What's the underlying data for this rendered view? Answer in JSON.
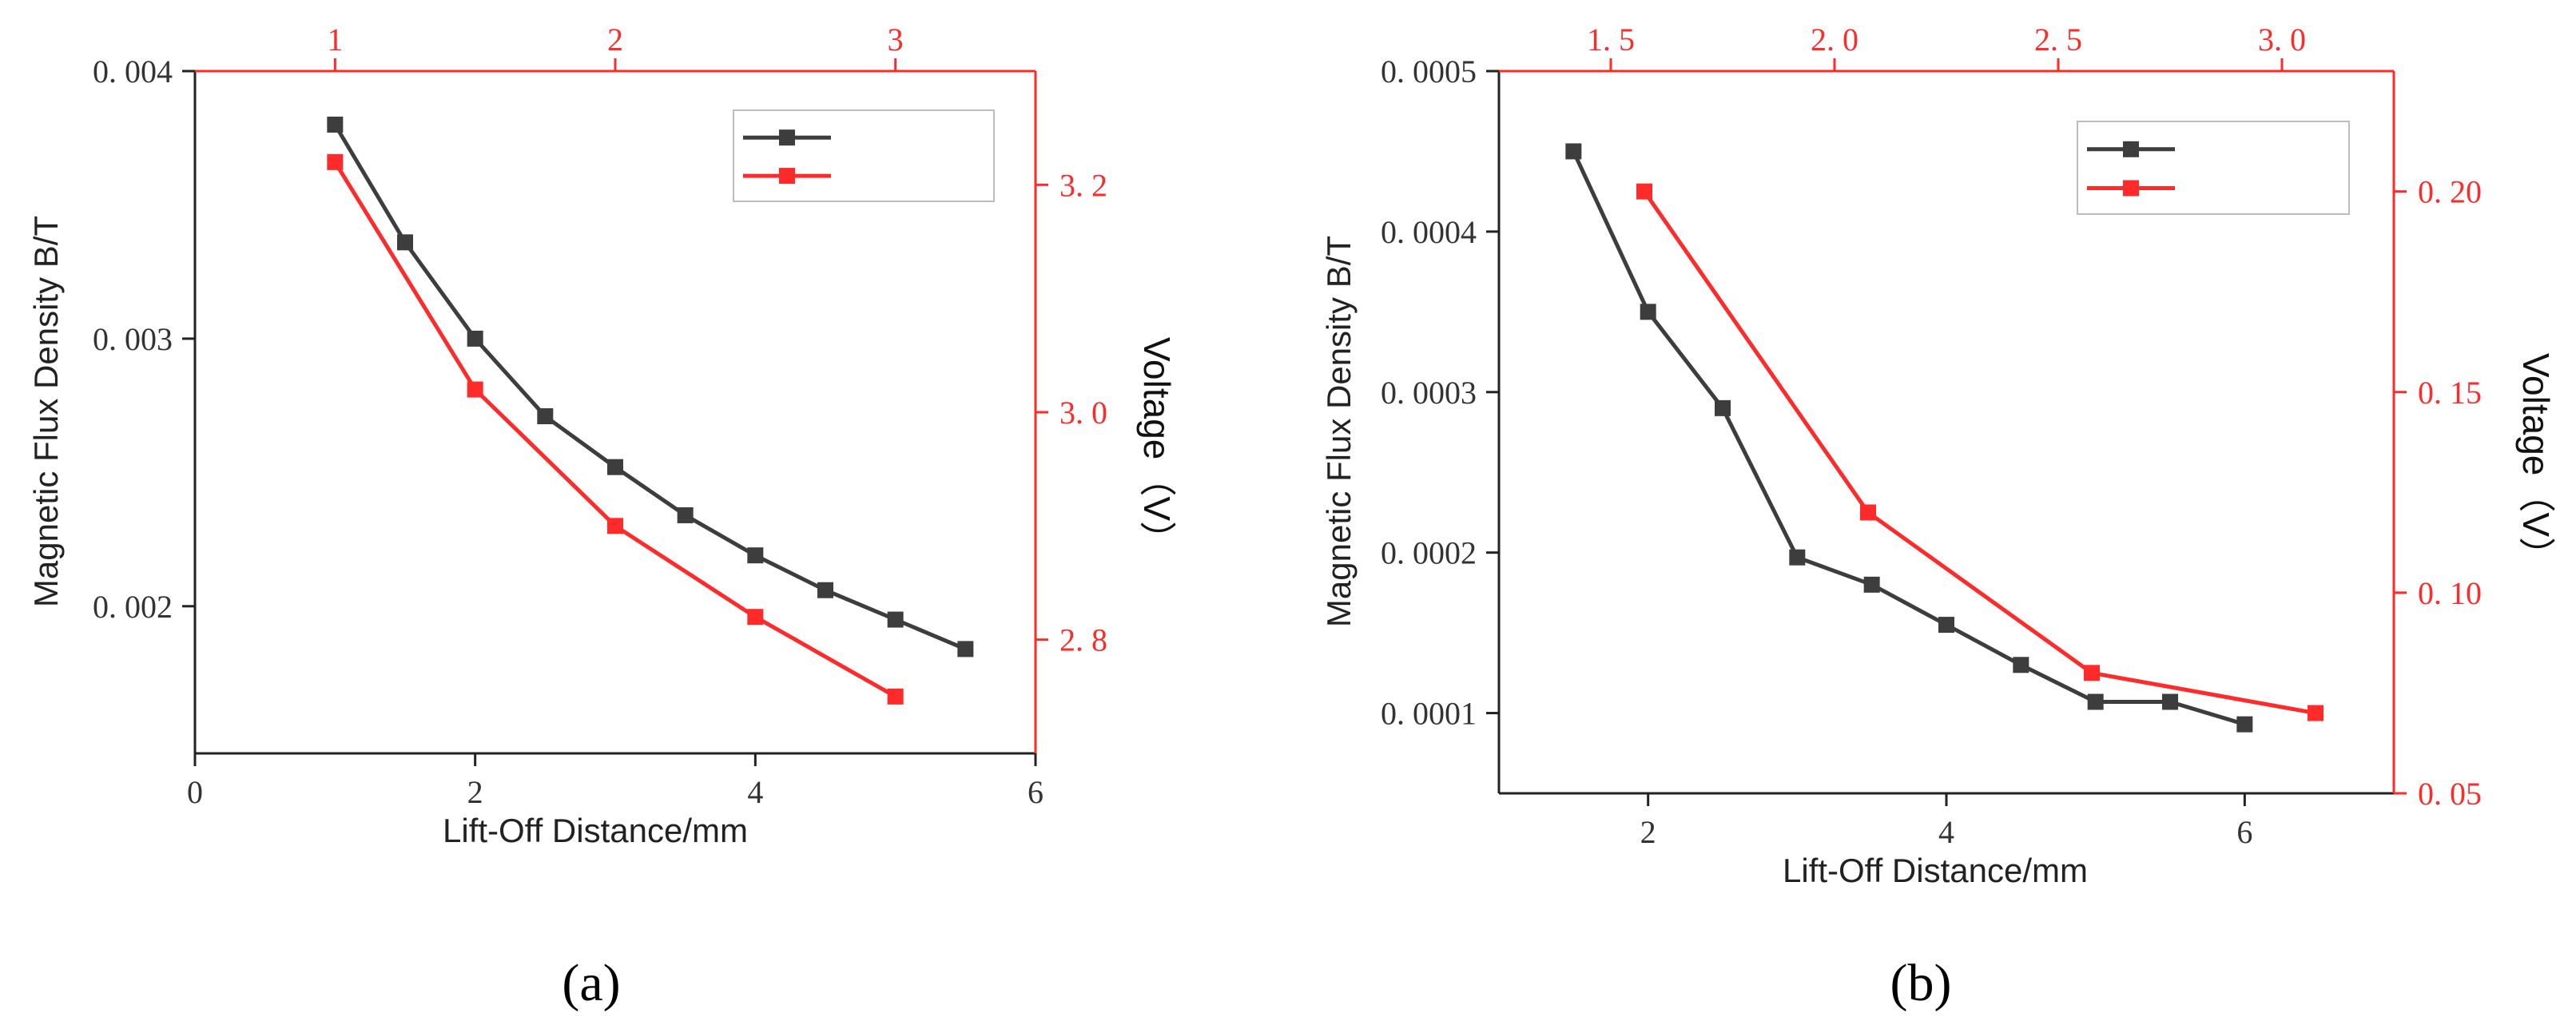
{
  "chart_data": [
    {
      "type": "line",
      "panel_label": "(a)",
      "xlabel": "Lift-Off Distance/mm",
      "ylabel": "Magnetic Flux Density B/T",
      "y2label": "Voltage（V）",
      "xlim": [
        0,
        6
      ],
      "ylim": [
        0.00145,
        0.004
      ],
      "x2lim": [
        0.5,
        3.5
      ],
      "y2lim": [
        2.7,
        3.3
      ],
      "x_ticks": [
        "0",
        "2",
        "4",
        "6"
      ],
      "y_ticks": [
        "0. 002",
        "0. 003",
        "0. 004"
      ],
      "x2_ticks": [
        "1",
        "2",
        "3"
      ],
      "y2_ticks": [
        "2. 8",
        "3. 0",
        "3. 2"
      ],
      "legend_position": "top-right",
      "grid": false,
      "colors": {
        "black_series": "#3d3d3d",
        "red_series": "#ff2a2a",
        "secondary_axis": "#ff2a2a"
      },
      "series": [
        {
          "axis": "primary",
          "color": "#3d3d3d",
          "x": [
            1,
            1.5,
            2,
            2.5,
            3,
            3.5,
            4,
            4.5,
            5,
            5.5
          ],
          "y": [
            0.0038,
            0.00336,
            0.003,
            0.00271,
            0.00252,
            0.00234,
            0.00219,
            0.00206,
            0.00195,
            0.00184
          ]
        },
        {
          "axis": "secondary",
          "color": "#ff2a2a",
          "x": [
            1,
            1.5,
            2,
            2.5,
            3
          ],
          "y": [
            3.22,
            3.02,
            2.9,
            2.82,
            2.75
          ]
        }
      ]
    },
    {
      "type": "line",
      "panel_label": "(b)",
      "xlabel": "Lift-Off Distance/mm",
      "ylabel": "Magnetic Flux Density B/T",
      "y2label": "Voltage（V）",
      "xlim": [
        1,
        7
      ],
      "ylim": [
        5e-05,
        0.0005
      ],
      "x2lim": [
        1.25,
        3.25
      ],
      "y2lim": [
        0.05,
        0.23
      ],
      "x_ticks": [
        "2",
        "4",
        "6"
      ],
      "y_ticks": [
        "0. 0001",
        "0. 0002",
        "0. 0003",
        "0. 0004",
        "0. 0005"
      ],
      "x2_ticks": [
        "1. 5",
        "2. 0",
        "2. 5",
        "3. 0"
      ],
      "y2_ticks": [
        "0. 05",
        "0. 10",
        "0. 15",
        "0. 20"
      ],
      "legend_position": "top-right",
      "grid": false,
      "colors": {
        "black_series": "#3d3d3d",
        "red_series": "#ff2a2a",
        "secondary_axis": "#ff2a2a"
      },
      "series": [
        {
          "axis": "primary",
          "color": "#3d3d3d",
          "x": [
            1.5,
            2,
            2.5,
            3,
            3.5,
            4,
            4.5,
            5,
            5.5,
            6
          ],
          "y": [
            0.00045,
            0.00035,
            0.00029,
            0.000197,
            0.00018,
            0.000155,
            0.00013,
            0.000107,
            0.000107,
            9.3e-05
          ]
        },
        {
          "axis": "secondary",
          "color": "#ff2a2a",
          "x": [
            1.575,
            2.075,
            2.575,
            3.075
          ],
          "y": [
            0.2,
            0.12,
            0.08,
            0.07
          ]
        }
      ]
    }
  ]
}
